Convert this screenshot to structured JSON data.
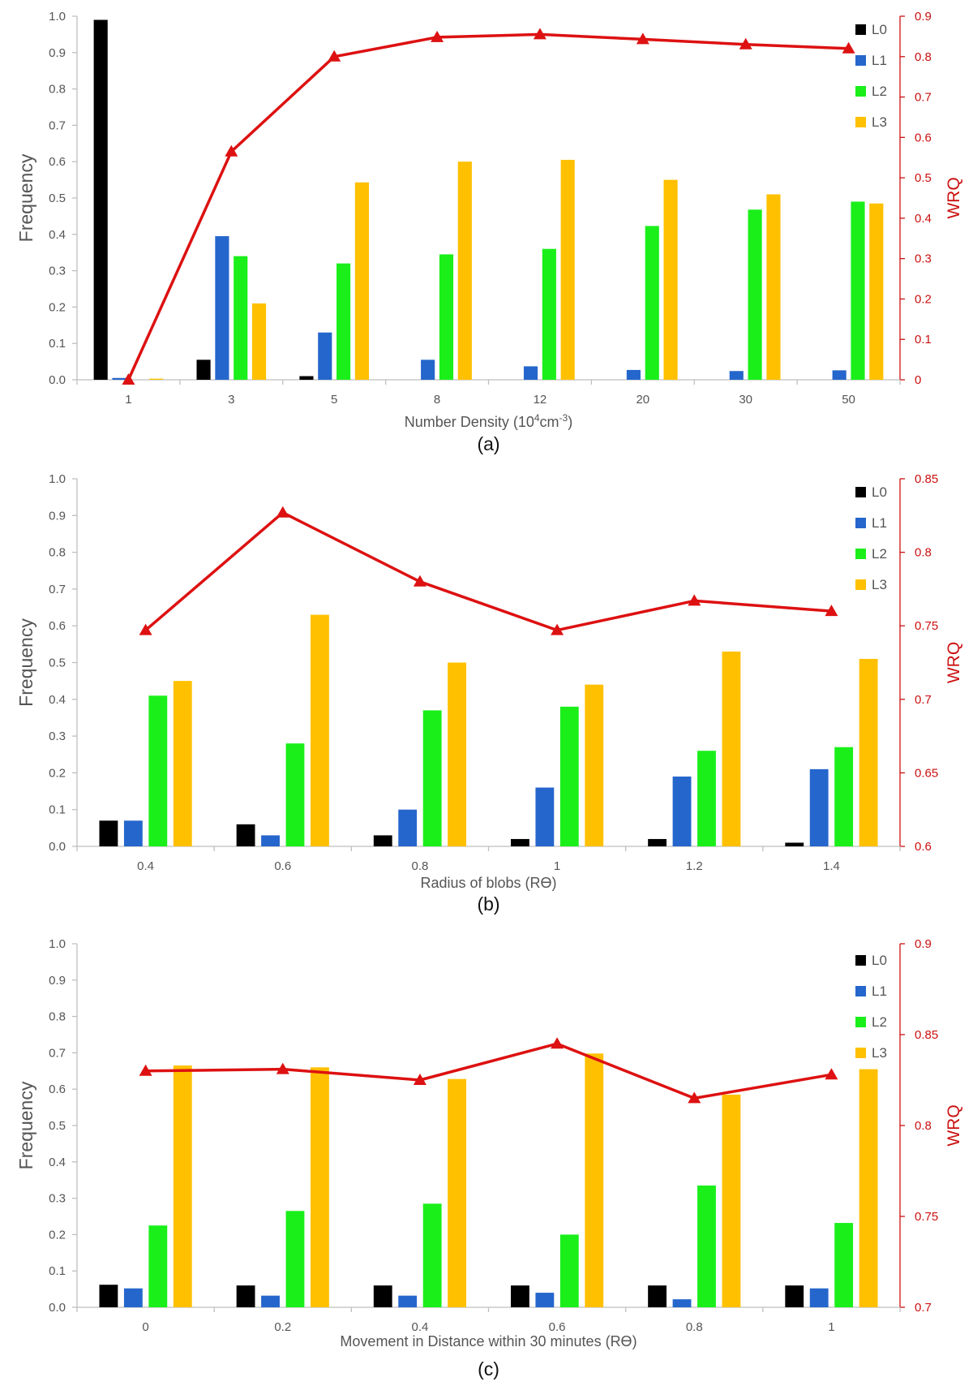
{
  "colors": {
    "L0": "#000000",
    "L1": "#2566cc",
    "L2": "#1aef1a",
    "L3": "#ffc000",
    "WRQ": "#dd1111"
  },
  "legend": [
    "L0",
    "L1",
    "L2",
    "L3"
  ],
  "chart_data": [
    {
      "type": "bar",
      "caption": "(a)",
      "xlabel_prefix": "Number Density (10",
      "xlabel_sup1": "4",
      "xlabel_mid": "cm",
      "xlabel_sup2": "-3",
      "xlabel_suffix": ")",
      "ylabel": "Frequency",
      "y2label": "WRQ",
      "categories": [
        "1",
        "3",
        "5",
        "8",
        "12",
        "20",
        "30",
        "50"
      ],
      "ylim": [
        0,
        1.0
      ],
      "yticks": [
        "0.0",
        "0.1",
        "0.2",
        "0.3",
        "0.4",
        "0.5",
        "0.6",
        "0.7",
        "0.8",
        "0.9",
        "1.0"
      ],
      "y2lim": [
        0,
        0.9
      ],
      "y2ticks": [
        "0",
        "0.1",
        "0.2",
        "0.3",
        "0.4",
        "0.5",
        "0.6",
        "0.7",
        "0.8",
        "0.9"
      ],
      "series": [
        {
          "name": "L0",
          "values": [
            0.99,
            0.055,
            0.01,
            0,
            0,
            0,
            0,
            0
          ]
        },
        {
          "name": "L1",
          "values": [
            0.005,
            0.395,
            0.13,
            0.055,
            0.037,
            0.027,
            0.024,
            0.026
          ]
        },
        {
          "name": "L2",
          "values": [
            0,
            0.34,
            0.32,
            0.345,
            0.36,
            0.423,
            0.468,
            0.49
          ]
        },
        {
          "name": "L3",
          "values": [
            0.003,
            0.21,
            0.543,
            0.6,
            0.605,
            0.55,
            0.51,
            0.485
          ]
        }
      ],
      "line": {
        "name": "WRQ",
        "axis": "right",
        "values": [
          0.0,
          0.565,
          0.8,
          0.848,
          0.855,
          0.843,
          0.83,
          0.82
        ]
      }
    },
    {
      "type": "bar",
      "caption": "(b)",
      "xlabel": "Radius of blobs (Rϴ)",
      "ylabel": "Frequency",
      "y2label": "WRQ",
      "categories": [
        "0.4",
        "0.6",
        "0.8",
        "1",
        "1.2",
        "1.4"
      ],
      "ylim": [
        0,
        1.0
      ],
      "yticks": [
        "0.0",
        "0.1",
        "0.2",
        "0.3",
        "0.4",
        "0.5",
        "0.6",
        "0.7",
        "0.8",
        "0.9",
        "1.0"
      ],
      "y2lim": [
        0.6,
        0.85
      ],
      "y2ticks": [
        "0.6",
        "0.65",
        "0.7",
        "0.75",
        "0.8",
        "0.85"
      ],
      "series": [
        {
          "name": "L0",
          "values": [
            0.07,
            0.06,
            0.03,
            0.02,
            0.02,
            0.01
          ]
        },
        {
          "name": "L1",
          "values": [
            0.07,
            0.03,
            0.1,
            0.16,
            0.19,
            0.21
          ]
        },
        {
          "name": "L2",
          "values": [
            0.41,
            0.28,
            0.37,
            0.38,
            0.26,
            0.27
          ]
        },
        {
          "name": "L3",
          "values": [
            0.45,
            0.63,
            0.5,
            0.44,
            0.53,
            0.51
          ]
        }
      ],
      "line": {
        "name": "WRQ",
        "axis": "right",
        "values": [
          0.747,
          0.827,
          0.78,
          0.747,
          0.767,
          0.76
        ]
      }
    },
    {
      "type": "bar",
      "caption": "(c)",
      "xlabel": "Movement in Distance within 30 minutes (Rϴ)",
      "ylabel": "Frequency",
      "y2label": "WRQ",
      "categories": [
        "0",
        "0.2",
        "0.4",
        "0.6",
        "0.8",
        "1"
      ],
      "ylim": [
        0,
        1.0
      ],
      "yticks": [
        "0.0",
        "0.1",
        "0.2",
        "0.3",
        "0.4",
        "0.5",
        "0.6",
        "0.7",
        "0.8",
        "0.9",
        "1.0"
      ],
      "y2lim": [
        0.7,
        0.9
      ],
      "y2ticks": [
        "0.7",
        "0.75",
        "0.8",
        "0.85",
        "0.9"
      ],
      "series": [
        {
          "name": "L0",
          "values": [
            0.062,
            0.06,
            0.06,
            0.06,
            0.06,
            0.06
          ]
        },
        {
          "name": "L1",
          "values": [
            0.052,
            0.032,
            0.032,
            0.04,
            0.022,
            0.052
          ]
        },
        {
          "name": "L2",
          "values": [
            0.225,
            0.265,
            0.285,
            0.2,
            0.335,
            0.232
          ]
        },
        {
          "name": "L3",
          "values": [
            0.665,
            0.66,
            0.628,
            0.698,
            0.585,
            0.655
          ]
        }
      ],
      "line": {
        "name": "WRQ",
        "axis": "right",
        "values": [
          0.83,
          0.831,
          0.825,
          0.845,
          0.815,
          0.828
        ]
      }
    }
  ]
}
